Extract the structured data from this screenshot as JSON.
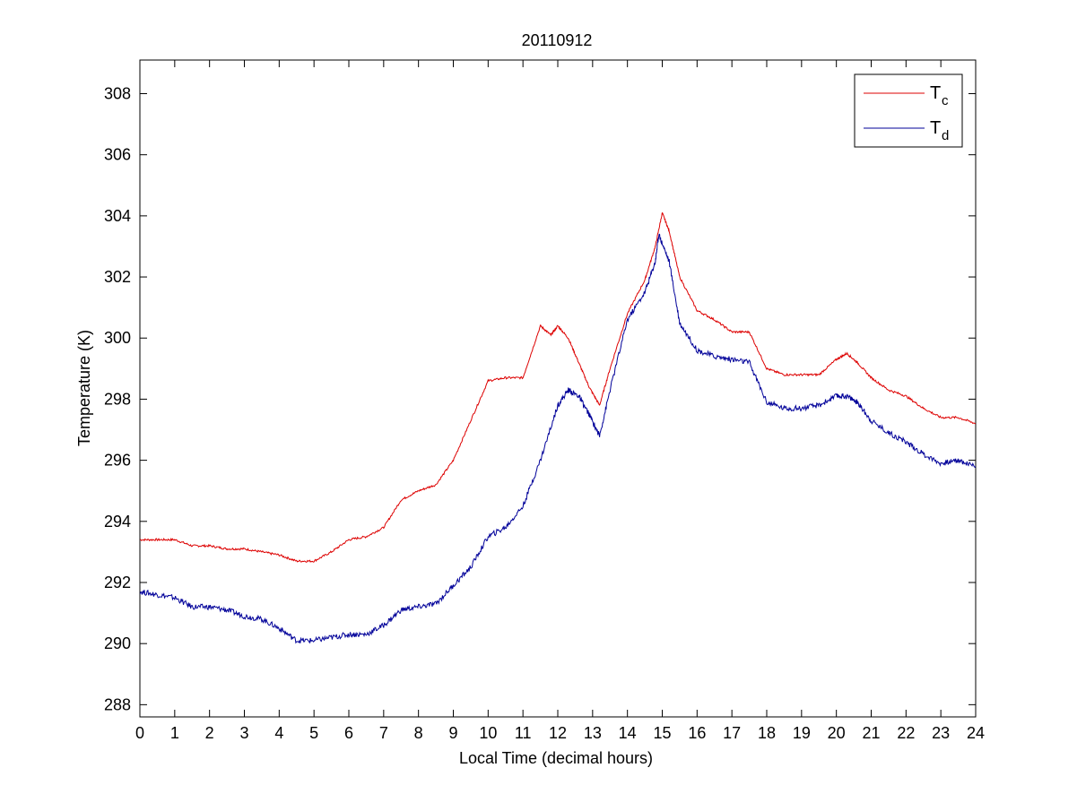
{
  "chart_data": {
    "type": "line",
    "title": "20110912",
    "xlabel": "Local Time (decimal hours)",
    "ylabel": "Temperature (K)",
    "xlim": [
      0,
      24
    ],
    "ylim": [
      287.6,
      309.1
    ],
    "xticks": [
      0,
      1,
      2,
      3,
      4,
      5,
      6,
      7,
      8,
      9,
      10,
      11,
      12,
      13,
      14,
      15,
      16,
      17,
      18,
      19,
      20,
      21,
      22,
      23,
      24
    ],
    "yticks": [
      288,
      290,
      292,
      294,
      296,
      298,
      300,
      302,
      304,
      306,
      308
    ],
    "grid": false,
    "legend_position": "top-right",
    "series": [
      {
        "name": "T_c",
        "legend_main": "T",
        "legend_sub": "c",
        "color": "#dd0000",
        "x": [
          0,
          0.5,
          1,
          1.5,
          2,
          2.5,
          3,
          3.5,
          4,
          4.5,
          5,
          5.5,
          6,
          6.5,
          7,
          7.5,
          8,
          8.5,
          9,
          9.5,
          10,
          10.5,
          11,
          11.5,
          11.8,
          12,
          12.3,
          12.6,
          12.9,
          13.2,
          13.5,
          14,
          14.5,
          14.8,
          15,
          15.2,
          15.5,
          16,
          16.5,
          17,
          17.5,
          18,
          18.5,
          19,
          19.5,
          20,
          20.3,
          20.6,
          21,
          21.5,
          22,
          22.5,
          23,
          23.5,
          24
        ],
        "y": [
          293.4,
          293.4,
          293.4,
          293.2,
          293.2,
          293.1,
          293.1,
          293.0,
          292.9,
          292.7,
          292.7,
          293.0,
          293.4,
          293.5,
          293.8,
          294.7,
          295.0,
          295.2,
          296.0,
          297.3,
          298.6,
          298.7,
          298.7,
          300.4,
          300.1,
          300.4,
          300.0,
          299.2,
          298.4,
          297.8,
          299.0,
          300.8,
          301.9,
          303.0,
          304.1,
          303.5,
          302.0,
          300.9,
          300.6,
          300.2,
          300.2,
          299.0,
          298.8,
          298.8,
          298.8,
          299.3,
          299.5,
          299.2,
          298.7,
          298.3,
          298.1,
          297.7,
          297.4,
          297.4,
          297.2
        ]
      },
      {
        "name": "T_d",
        "legend_main": "T",
        "legend_sub": "d",
        "color": "#000099",
        "x": [
          0,
          0.5,
          1,
          1.5,
          2,
          2.5,
          3,
          3.5,
          4,
          4.5,
          5,
          5.5,
          6,
          6.5,
          7,
          7.5,
          8,
          8.5,
          9,
          9.5,
          10,
          10.5,
          11,
          11.5,
          12,
          12.3,
          12.6,
          12.9,
          13.2,
          13.5,
          14,
          14.5,
          14.8,
          14.9,
          15.2,
          15.5,
          16,
          16.5,
          17,
          17.5,
          18,
          18.5,
          19,
          19.5,
          20,
          20.3,
          20.6,
          21,
          21.5,
          22,
          22.5,
          23,
          23.5,
          24
        ],
        "y": [
          291.7,
          291.6,
          291.5,
          291.2,
          291.2,
          291.1,
          290.9,
          290.8,
          290.5,
          290.1,
          290.1,
          290.2,
          290.3,
          290.3,
          290.6,
          291.1,
          291.2,
          291.3,
          291.9,
          292.5,
          293.5,
          293.8,
          294.5,
          296.0,
          297.8,
          298.3,
          298.1,
          297.5,
          296.8,
          298.3,
          300.6,
          301.5,
          302.5,
          303.4,
          302.5,
          300.5,
          299.6,
          299.4,
          299.3,
          299.2,
          297.9,
          297.7,
          297.7,
          297.8,
          298.1,
          298.1,
          297.9,
          297.3,
          296.9,
          296.6,
          296.2,
          295.9,
          296.0,
          295.8
        ]
      }
    ]
  }
}
